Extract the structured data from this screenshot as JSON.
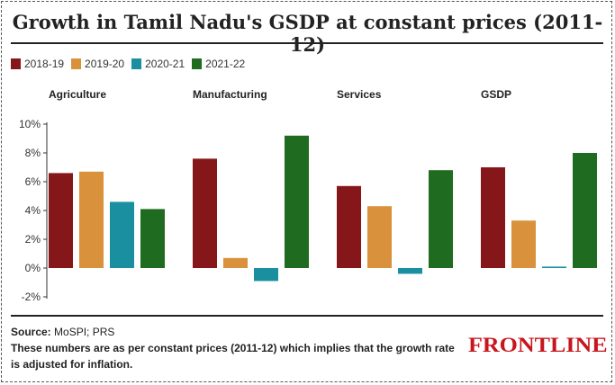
{
  "header": {
    "title": "Growth in Tamil Nadu's GSDP at constant prices (2011-12)"
  },
  "colors": {
    "2018-19": "#85171a",
    "2019-20": "#d9923b",
    "2020-21": "#1a8fa0",
    "2021-22": "#1f6b1f"
  },
  "chart_data": {
    "type": "bar",
    "title": "Growth in Tamil Nadu's GSDP at constant prices (2011-12)",
    "categories": [
      "Agriculture",
      "Manufacturing",
      "Services",
      "GSDP"
    ],
    "series": [
      {
        "name": "2018-19",
        "values": [
          6.6,
          7.6,
          5.7,
          7.0
        ]
      },
      {
        "name": "2019-20",
        "values": [
          6.7,
          0.7,
          4.3,
          3.3
        ]
      },
      {
        "name": "2020-21",
        "values": [
          4.6,
          -0.9,
          -0.4,
          0.1
        ]
      },
      {
        "name": "2021-22",
        "values": [
          4.1,
          9.2,
          6.8,
          8.0
        ]
      }
    ],
    "y_ticks": [
      "10%",
      "8%",
      "6%",
      "4%",
      "2%",
      "0%",
      "-2%"
    ],
    "ylim": [
      -2,
      10
    ],
    "legend": "top-left",
    "grid": false
  },
  "footer": {
    "source_label": "Source:",
    "source_value": "MoSPI; PRS",
    "note": "These numbers are as per constant prices (2011-12) which implies that the growth rate is adjusted for inflation."
  },
  "brand": {
    "logo_text": "FRONTLINE"
  }
}
